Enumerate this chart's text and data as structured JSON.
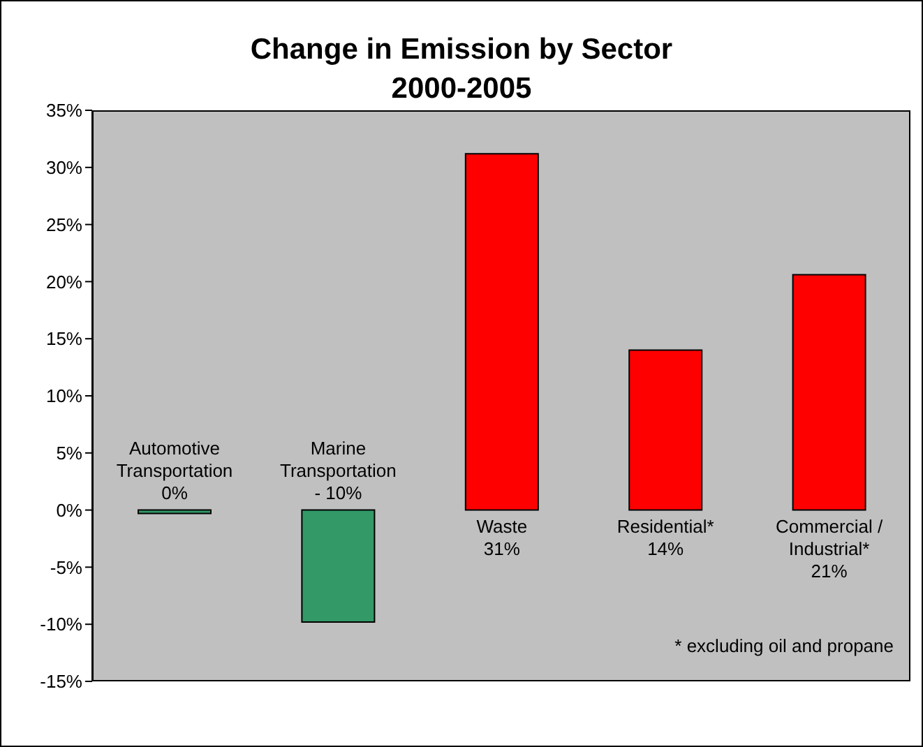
{
  "chart_data": {
    "type": "bar",
    "title": "Change in Emission by Sector\n2000-2005",
    "categories": [
      "Automotive Transportation",
      "Marine Transportation",
      "Waste",
      "Residential*",
      "Commercial / Industrial*"
    ],
    "values": [
      -0.3,
      -9.8,
      31.2,
      14,
      20.6
    ],
    "colors": [
      "#339966",
      "#339966",
      "#ff0000",
      "#ff0000",
      "#ff0000"
    ],
    "value_labels": [
      "0%",
      "- 10%",
      "31%",
      "14%",
      "21%"
    ],
    "ylim": [
      -15,
      35
    ],
    "yticks": [
      {
        "value": -15,
        "label": "-15%"
      },
      {
        "value": -10,
        "label": "-10%"
      },
      {
        "value": -5,
        "label": "-5%"
      },
      {
        "value": 0,
        "label": "0%"
      },
      {
        "value": 5,
        "label": "5%"
      },
      {
        "value": 10,
        "label": "10%"
      },
      {
        "value": 15,
        "label": "15%"
      },
      {
        "value": 20,
        "label": "20%"
      },
      {
        "value": 25,
        "label": "25%"
      },
      {
        "value": 30,
        "label": "30%"
      },
      {
        "value": 35,
        "label": "35%"
      }
    ],
    "grid": false,
    "legend": false,
    "tick_labels": "y",
    "annotations": [
      "* excluding oil and propane"
    ]
  }
}
